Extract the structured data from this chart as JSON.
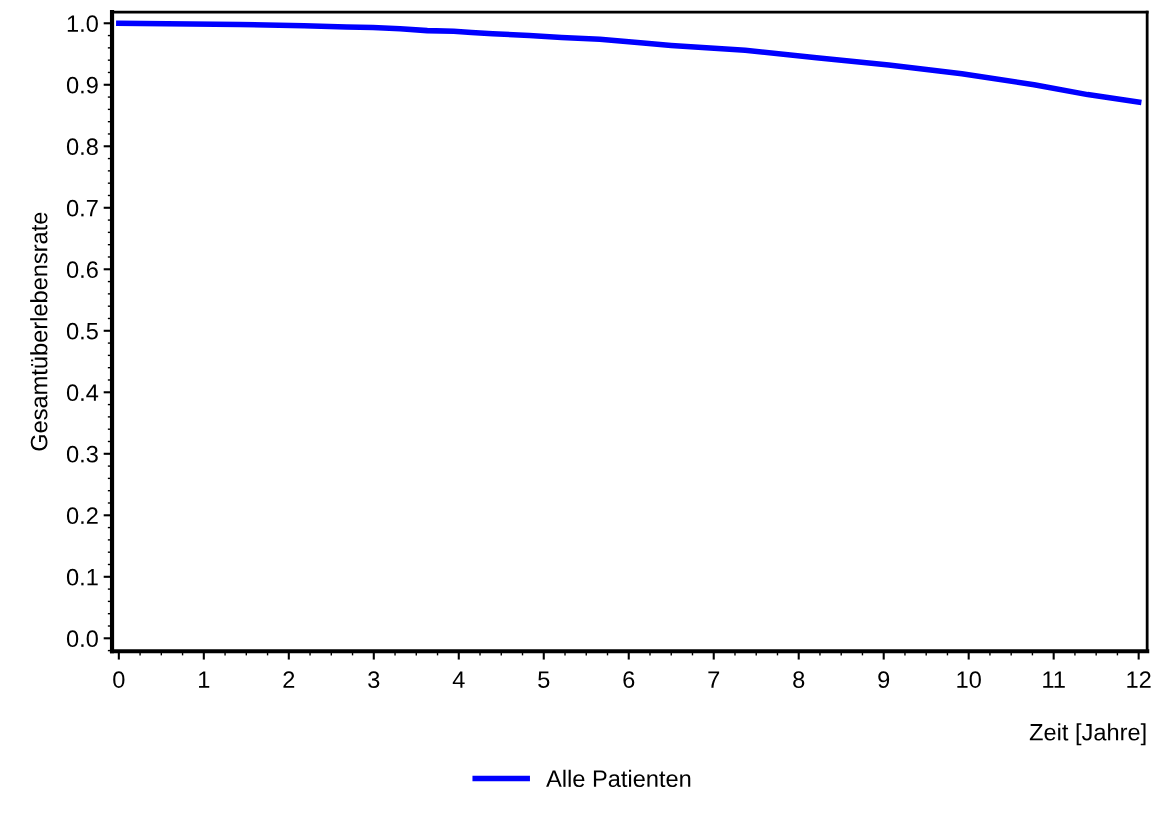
{
  "chart_data": {
    "type": "line",
    "xlabel": "Zeit [Jahre]",
    "ylabel": "Gesamtüberlebensrate",
    "xlim": [
      -0.08,
      12.1
    ],
    "xticks": [
      0,
      1,
      2,
      3,
      4,
      5,
      6,
      7,
      8,
      9,
      10,
      11,
      12
    ],
    "ylim": [
      -0.021,
      1.018
    ],
    "yticks": [
      {
        "value": 0,
        "label": "0.0"
      },
      0.1,
      0.2,
      0.3,
      0.4,
      0.5,
      0.6,
      0.7,
      0.8,
      0.9,
      {
        "value": 1,
        "label": "1.0"
      }
    ],
    "grid": false,
    "legend": "bottom",
    "series": [
      {
        "name": "Alle Patienten",
        "color": "#0000ff",
        "x": [
          0,
          1.42,
          2.18,
          2.68,
          2.99,
          3.31,
          3.63,
          3.94,
          4.15,
          4.4,
          4.83,
          5.21,
          5.66,
          6.17,
          6.5,
          7.37,
          8.21,
          9.06,
          9.92,
          10.77,
          11.4,
          12.0
        ],
        "values": [
          1.0,
          0.998,
          0.996,
          0.994,
          0.993,
          0.991,
          0.988,
          0.987,
          0.985,
          0.983,
          0.98,
          0.977,
          0.974,
          0.968,
          0.964,
          0.956,
          0.944,
          0.932,
          0.918,
          0.9,
          0.884,
          0.872
        ]
      }
    ]
  }
}
